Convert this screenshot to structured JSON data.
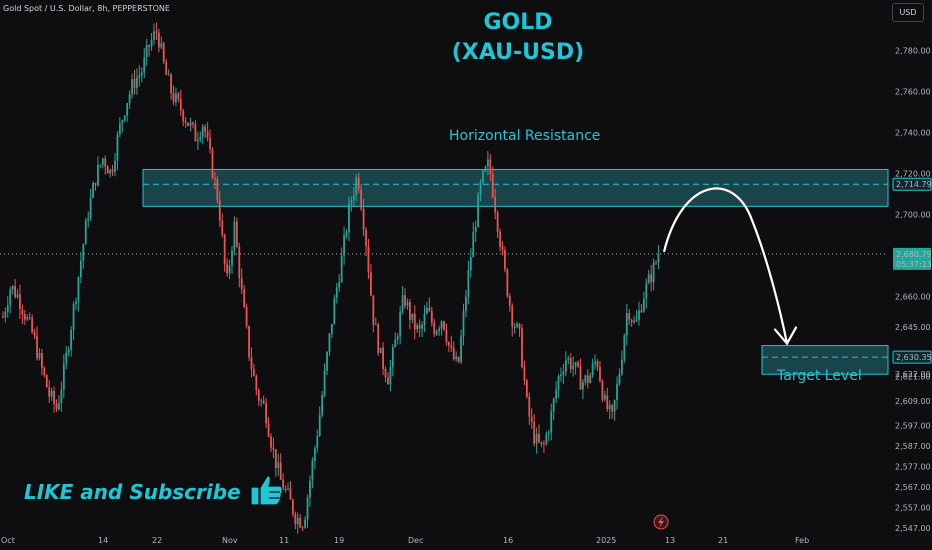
{
  "header": {
    "symbol_line": "Gold Spot / U.S. Dollar, 8h, PEPPERSTONE",
    "currency": "USD"
  },
  "overlay": {
    "title_line1": "GOLD",
    "title_line2": "(XAU-USD)",
    "resistance_label": "Horizontal Resistance",
    "target_label": "Target Level",
    "cta_text": "LIKE and Subscribe",
    "cta_icon": "thumbs-up-icon"
  },
  "colors": {
    "background": "#0e0e10",
    "up": "#26a69a",
    "down": "#ef5350",
    "accent": "#1ec7d6",
    "zone_fill": "#1b4d55",
    "price_tag": "#26a69a"
  },
  "chart_data": {
    "type": "candlestick",
    "title": "GOLD (XAU-USD)",
    "ylim": [
      2543,
      2795
    ],
    "y_ticks": [
      2547,
      2557,
      2567,
      2577,
      2587,
      2597,
      2609,
      2621,
      2645,
      2660,
      2700,
      2720,
      2740,
      2760,
      2780
    ],
    "y_tick_labels": [
      "2,547.00",
      "2,557.00",
      "2,567.00",
      "2,577.00",
      "2,587.00",
      "2,597.00",
      "2,609.00",
      "2,621.00",
      "2,645.00",
      "2,660.00",
      "2,700.00",
      "2,720.00",
      "2,740.00",
      "2,760.00",
      "2,780.00"
    ],
    "x_tick_labels": [
      "Oct",
      "14",
      "22",
      "Nov",
      "11",
      "19",
      "Dec",
      "16",
      "2025",
      "13",
      "21",
      "Feb"
    ],
    "price_tags": [
      {
        "label": "2,714.79",
        "value": 2714.79,
        "style": "outline"
      },
      {
        "label": "2,680.79",
        "value": 2680.79,
        "style": "filled",
        "sub": "05:37:13"
      },
      {
        "label": "2,630.35",
        "value": 2630.35,
        "style": "outline"
      },
      {
        "label": "2,622.00",
        "value": 2622,
        "style": "faint"
      }
    ],
    "zones": [
      {
        "name": "Horizontal Resistance",
        "from": 2704,
        "to": 2722,
        "mid": 2714.79
      },
      {
        "name": "Target Level",
        "from": 2622,
        "to": 2636,
        "mid": 2630.35
      }
    ],
    "current_price": 2680.79,
    "path": [
      2650,
      2665,
      2660,
      2650,
      2640,
      2625,
      2612,
      2605,
      2625,
      2650,
      2675,
      2700,
      2718,
      2728,
      2720,
      2740,
      2755,
      2765,
      2770,
      2783,
      2790,
      2770,
      2758,
      2752,
      2745,
      2738,
      2745,
      2725,
      2705,
      2665,
      2695,
      2660,
      2630,
      2612,
      2605,
      2585,
      2570,
      2562,
      2552,
      2550,
      2575,
      2600,
      2630,
      2658,
      2680,
      2705,
      2720,
      2690,
      2650,
      2630,
      2620,
      2640,
      2660,
      2648,
      2642,
      2653,
      2644,
      2650,
      2633,
      2625,
      2660,
      2690,
      2715,
      2725,
      2700,
      2673,
      2650,
      2640,
      2605,
      2590,
      2585,
      2600,
      2620,
      2630,
      2626,
      2618,
      2620,
      2630,
      2608,
      2600,
      2625,
      2655,
      2645,
      2660,
      2670,
      2680
    ]
  }
}
